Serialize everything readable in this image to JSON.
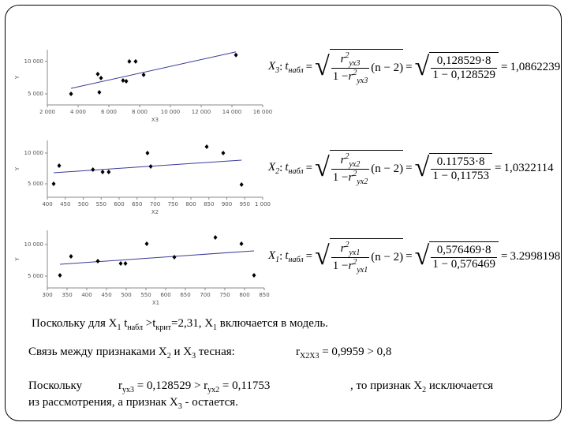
{
  "chart_data": [
    {
      "type": "scatter",
      "x_label": "X3",
      "y_label": "Y",
      "x": [
        3540,
        5280,
        5380,
        5490,
        6920,
        7130,
        7330,
        7740,
        8260,
        14260
      ],
      "values": [
        5000,
        8050,
        5240,
        7440,
        7070,
        6950,
        10000,
        10000,
        7930,
        10980
      ],
      "trend": {
        "x": [
          3540,
          14260
        ],
        "y": [
          5850,
          11460
        ]
      },
      "xlim": [
        2000,
        16000
      ],
      "ylim": [
        3300,
        11800
      ],
      "xticks": [
        {
          "value": 2000,
          "label": "2 000"
        },
        {
          "value": 4000,
          "label": "4 000"
        },
        {
          "value": 6000,
          "label": "6 000"
        },
        {
          "value": 8000,
          "label": "8 000"
        },
        {
          "value": 10000,
          "label": "10 000"
        },
        {
          "value": 12000,
          "label": "12 000"
        },
        {
          "value": 14000,
          "label": "14 000"
        },
        {
          "value": 16000,
          "label": "16 000"
        }
      ],
      "yticks": [
        {
          "value": 5000,
          "label": "5 000"
        },
        {
          "value": 10000,
          "label": "10 000"
        }
      ],
      "color": "#000000",
      "trend_color": "#3a3a9a"
    },
    {
      "type": "scatter",
      "x_label": "X2",
      "y_label": "Y",
      "x": [
        417.6,
        433,
        527,
        554,
        571,
        679,
        688,
        844,
        890,
        941
      ],
      "values": [
        5000,
        7950,
        7310,
        6920,
        6920,
        10000,
        7820,
        11030,
        10000,
        4870
      ],
      "trend": {
        "x": [
          417.6,
          941
        ],
        "y": [
          6790,
          8850
        ]
      },
      "xlim": [
        400,
        1000
      ],
      "ylim": [
        2820,
        12050
      ],
      "xticks": [
        400,
        450,
        500,
        550,
        600,
        650,
        700,
        750,
        800,
        850,
        900,
        950,
        {
          "value": 1000,
          "label": "1 000"
        }
      ],
      "yticks": [
        {
          "value": 5000,
          "label": "5 000"
        },
        {
          "value": 10000,
          "label": "10 000"
        }
      ],
      "color": "#000000",
      "trend_color": "#3a3a9a"
    },
    {
      "type": "scatter",
      "x_label": "X1",
      "y_label": "Y",
      "x": [
        332,
        360,
        428,
        486,
        498,
        552,
        622,
        726,
        792,
        824
      ],
      "values": [
        5120,
        8120,
        7380,
        7000,
        7000,
        10120,
        8000,
        11120,
        10120,
        5120
      ],
      "trend": {
        "x": [
          332,
          824
        ],
        "y": [
          6880,
          9000
        ]
      },
      "xlim": [
        300,
        850
      ],
      "ylim": [
        3125,
        12250
      ],
      "xticks": [
        300,
        350,
        400,
        450,
        500,
        550,
        600,
        650,
        700,
        750,
        800,
        850
      ],
      "yticks": [
        {
          "value": 5000,
          "label": "5 000"
        },
        {
          "value": 10000,
          "label": "10 000"
        }
      ],
      "color": "#000000",
      "trend_color": "#3a3a9a"
    }
  ],
  "formulas": {
    "sep": ":",
    "t": "t",
    "t_sub": "набл",
    "eq": "=",
    "r": "r",
    "sq": "2",
    "one_minus": "1 −",
    "factor": "(n − 2)",
    "items": [
      {
        "var": "X",
        "var_sub": "3",
        "r_sub": "yx3",
        "num": "0,128529·8",
        "den": "1 − 0,128529",
        "result": "1,0862239"
      },
      {
        "var": "X",
        "var_sub": "2",
        "r_sub": "yx2",
        "num": "0.11753·8",
        "den": "1 − 0,11753",
        "result": "1,0322114"
      },
      {
        "var": "X",
        "var_sub": "1",
        "r_sub": "yx1",
        "num": "0,576469·8",
        "den": "1 − 0,576469",
        "result": "3.2998198"
      }
    ]
  },
  "text": [
    [
      {
        "t": "Поскольку для X"
      },
      {
        "t": "1",
        "sub": true
      },
      {
        "t": " t"
      },
      {
        "t": "набл",
        "sub": true
      },
      {
        "t": " >t"
      },
      {
        "t": "крит",
        "sub": true
      },
      {
        "t": "=2,31, X"
      },
      {
        "t": "1",
        "sub": true
      },
      {
        "t": " включается в модель."
      }
    ],
    [
      {
        "t": "Связь между признаками X"
      },
      {
        "t": "2",
        "sub": true
      },
      {
        "t": " и X"
      },
      {
        "t": "3",
        "sub": true
      },
      {
        "t": " тесная:"
      }
    ],
    [
      {
        "t": "r"
      },
      {
        "t": "X2X3",
        "sub": true
      },
      {
        "t": " = 0,9959 > 0,8"
      }
    ],
    [
      {
        "t": "Поскольку"
      }
    ],
    [
      {
        "t": "r"
      },
      {
        "t": "yx3",
        "sub": true
      },
      {
        "t": " = 0,128529 > r"
      },
      {
        "t": "yx2",
        "sub": true
      },
      {
        "t": " = 0,11753"
      }
    ],
    [
      {
        "t": ", то признак X"
      },
      {
        "t": "2",
        "sub": true
      },
      {
        "t": " исключается"
      }
    ],
    [
      {
        "t": "из рассмотрения, а признак X"
      },
      {
        "t": "3",
        "sub": true
      },
      {
        "t": " - остается."
      }
    ]
  ]
}
